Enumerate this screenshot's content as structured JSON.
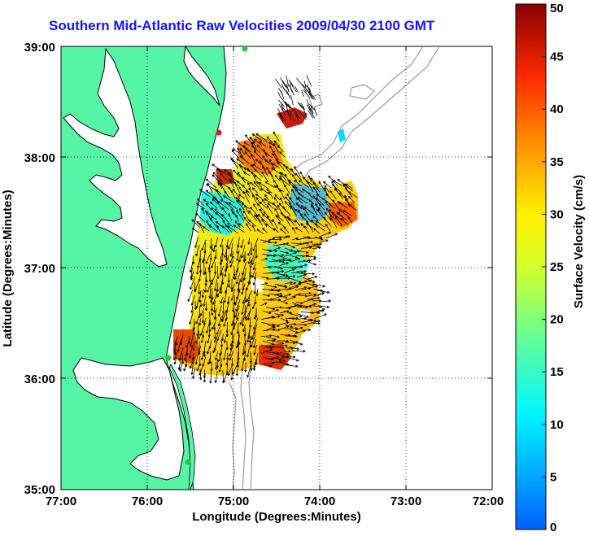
{
  "title": "Southern Mid-Atlantic Raw Velocities 2009/04/30 2100 GMT",
  "xlabel": "Longitude (Degrees:Minutes)",
  "ylabel": "Latitude (Degrees:Minutes)",
  "x_ticks": [
    "77:00",
    "76:00",
    "75:00",
    "74:00",
    "73:00",
    "72:00"
  ],
  "y_ticks": [
    "39:00",
    "38:00",
    "37:00",
    "36:00",
    "35:00"
  ],
  "colorbar": {
    "label": "Surface Velocity (cm/s)",
    "ticks": [
      "50",
      "45",
      "40",
      "35",
      "30",
      "25",
      "20",
      "15",
      "10",
      "5",
      "0"
    ],
    "min": 0,
    "max": 50
  },
  "colors": {
    "land": "#55f5a5",
    "coastline": "#000000",
    "bathymetry": "#9a9a9a",
    "grid": "#000000",
    "title": "#1414ff",
    "station_red": "#e11b1b",
    "station_green": "#22cc33"
  },
  "map_extent": {
    "lon_min": -77,
    "lon_max": -72,
    "lat_min": 35,
    "lat_max": 39
  }
}
